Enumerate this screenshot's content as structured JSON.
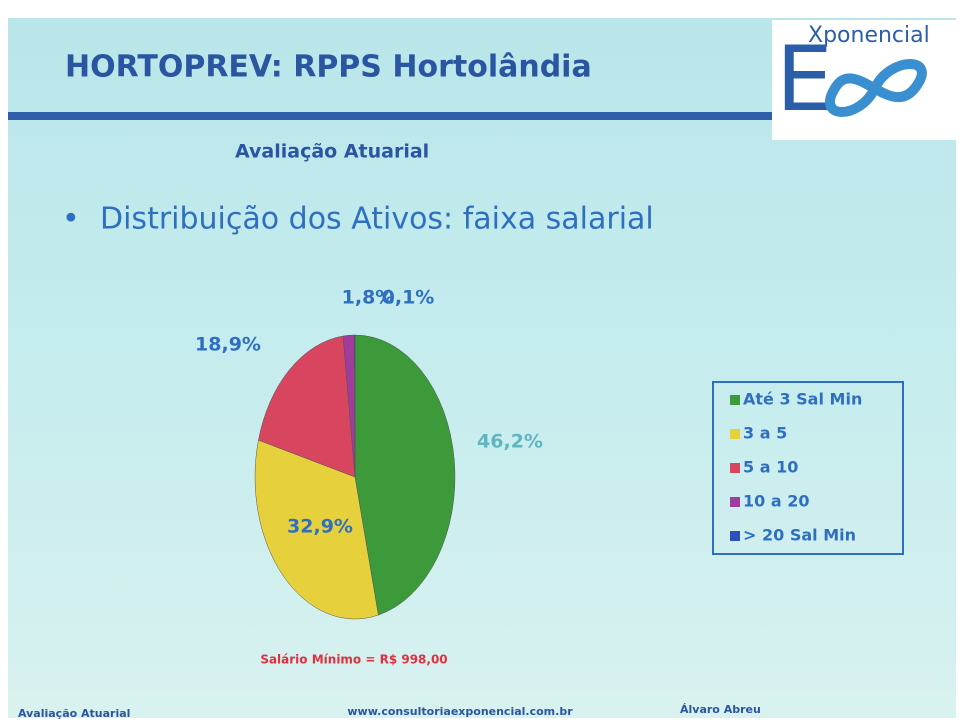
{
  "slide": {
    "title": "HORTOPREV: RPPS Hortolândia",
    "subtitle": "Avaliação Atuarial",
    "bullet": "Distribuição dos Ativos: faixa salarial",
    "note": "Salário Mínimo = R$ 998,00",
    "logo_letter": "E",
    "logo_text": "Xponencial",
    "footer_left": "Avaliação Atuarial",
    "footer_center": "www.consultoriaexponencial.com.br",
    "footer_right": "Álvaro Abreu"
  },
  "chart_data": {
    "type": "pie",
    "categories": [
      "Até 3 Sal Min",
      "3 a 5",
      "5 a 10",
      "10 a 20",
      "> 20 Sal Min"
    ],
    "values": [
      46.2,
      32.9,
      18.9,
      1.8,
      0.1
    ],
    "value_labels": [
      "46,2%",
      "32,9%",
      "18,9%",
      "1,8%",
      "0,1%"
    ],
    "colors": [
      "#3c9a3a",
      "#e6d13c",
      "#d8455e",
      "#a03c9e",
      "#2f4fbf"
    ],
    "legend": "right"
  }
}
